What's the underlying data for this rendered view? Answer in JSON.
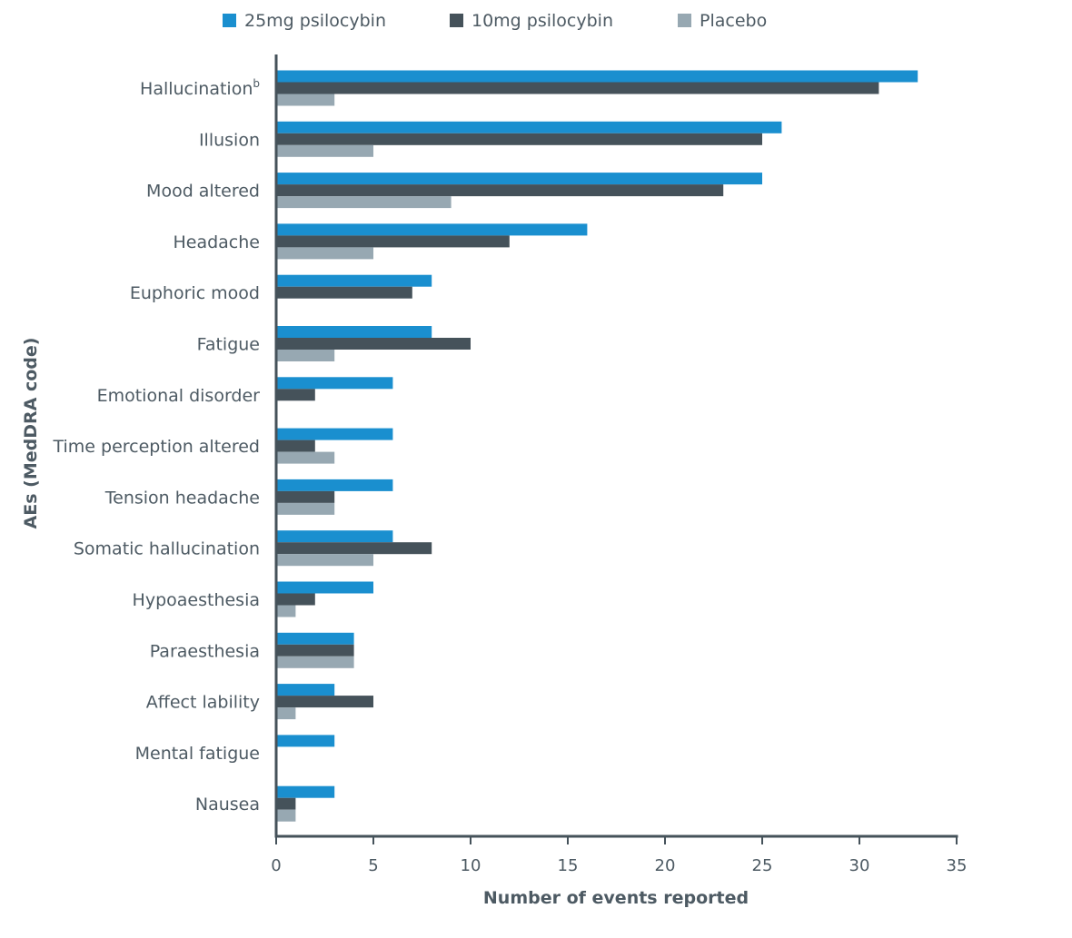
{
  "chart_data": {
    "type": "bar",
    "orientation": "horizontal",
    "xlabel": "Number of events reported",
    "ylabel": "AEs (MedDRA code)",
    "xlim": [
      0,
      35
    ],
    "xticks": [
      "0",
      "5",
      "10",
      "15",
      "20",
      "25",
      "30",
      "35"
    ],
    "grid": false,
    "legend_position": "top",
    "categories": [
      {
        "label": "Hallucination",
        "superscript": "b"
      },
      {
        "label": "Illusion"
      },
      {
        "label": "Mood altered"
      },
      {
        "label": "Headache"
      },
      {
        "label": "Euphoric mood"
      },
      {
        "label": "Fatigue"
      },
      {
        "label": "Emotional disorder"
      },
      {
        "label": "Time perception altered"
      },
      {
        "label": "Tension headache"
      },
      {
        "label": "Somatic hallucination"
      },
      {
        "label": "Hypoaesthesia"
      },
      {
        "label": "Paraesthesia"
      },
      {
        "label": "Affect lability"
      },
      {
        "label": "Mental fatigue"
      },
      {
        "label": "Nausea"
      }
    ],
    "series": [
      {
        "name": "25mg psilocybin",
        "color": "#1a8fcf",
        "values": [
          33,
          26,
          25,
          16,
          8,
          8,
          6,
          6,
          6,
          6,
          5,
          4,
          3,
          3,
          3
        ]
      },
      {
        "name": "10mg psilocybin",
        "color": "#45525a",
        "values": [
          31,
          25,
          23,
          12,
          7,
          10,
          2,
          2,
          3,
          8,
          2,
          4,
          5,
          0,
          1
        ]
      },
      {
        "name": "Placebo",
        "color": "#97a8b2",
        "values": [
          3,
          5,
          9,
          5,
          0,
          3,
          0,
          3,
          3,
          5,
          1,
          4,
          1,
          0,
          1
        ]
      }
    ]
  }
}
